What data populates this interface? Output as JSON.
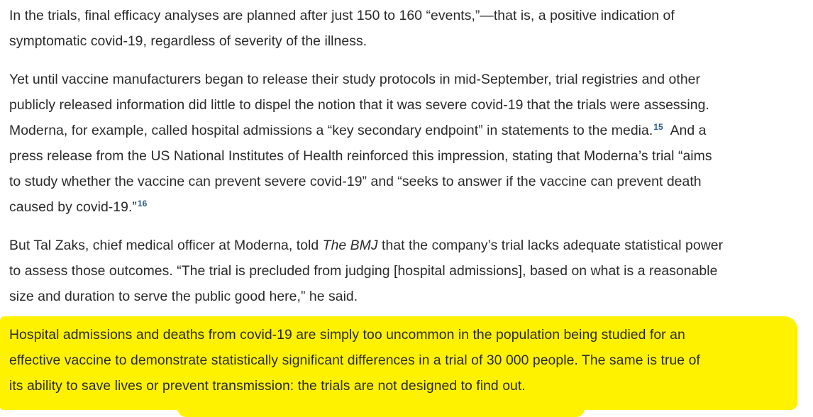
{
  "paragraphs": [
    {
      "lines": [
        "In the trials, final efficacy analyses are planned after just 150 to 160 “events,”—that is, a positive indication of",
        "symptomatic covid-19, regardless of severity of the illness."
      ]
    },
    {
      "lines": [
        "Yet until vaccine manufacturers began to release their study protocols in mid-September, trial registries and other",
        "publicly released information did little to dispel the notion that it was severe covid-19 that the trials were assessing.",
        "Moderna, for example, called hospital admissions a “key secondary endpoint” in statements to the media.",
        "And a",
        "press release from the US National Institutes of Health reinforced this impression, stating that Moderna’s trial “aims",
        "to study whether the vaccine can prevent severe covid-19” and “seeks to answer if the vaccine can prevent death",
        "caused by covid-19.”"
      ],
      "refs": [
        "15",
        "16"
      ]
    },
    {
      "lines": [
        "But Tal Zaks, chief medical officer at Moderna, told ",
        "The BMJ",
        " that the company’s trial lacks adequate statistical power",
        "to assess those outcomes. “The trial is precluded from judging [hospital admissions], based on what is a reasonable",
        "size and duration to serve the public good here,” he said."
      ]
    },
    {
      "highlighted": true,
      "highlight_color": "#fff200",
      "lines": [
        "Hospital admissions and deaths from covid-19 are simply too uncommon in the population being studied for an",
        "effective vaccine to demonstrate statistically significant differences in a trial of 30 000 people. The same is true of",
        "its ability to save lives or prevent transmission: the trials are not designed to find out."
      ]
    }
  ]
}
